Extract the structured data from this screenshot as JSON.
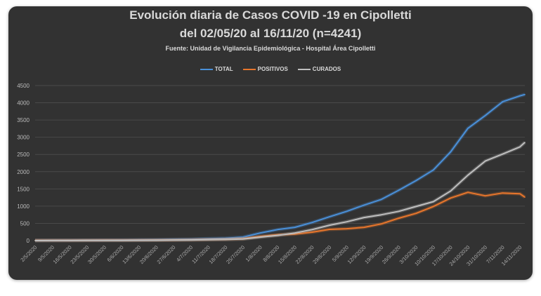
{
  "chart_data": {
    "type": "line",
    "title": "Evolución diaria de Casos COVID -19 en Cipolletti",
    "subtitle": "del 02/05/20 al 16/11/20  (n=4241)",
    "source": "Fuente: Unidad de Vigilancia Epidemiológica - Hospital Área Cipolletti",
    "xlabel": "",
    "ylabel": "",
    "ylim": [
      0,
      4500
    ],
    "yticks": [
      0,
      500,
      1000,
      1500,
      2000,
      2500,
      3000,
      3500,
      4000,
      4500
    ],
    "grid": true,
    "legend_position": "top-center",
    "x_tick_labels": [
      "2/5/2020",
      "9/5/2020",
      "16/5/2020",
      "23/5/2020",
      "30/5/2020",
      "6/6/2020",
      "13/6/2020",
      "20/6/2020",
      "27/6/2020",
      "4/7/2020",
      "11/7/2020",
      "18/7/2020",
      "25/7/2020",
      "1/8/2020",
      "8/8/2020",
      "15/8/2020",
      "22/8/2020",
      "29/8/2020",
      "5/9/2020",
      "12/9/2020",
      "19/9/2020",
      "26/9/2020",
      "3/10/2020",
      "10/10/2020",
      "17/10/2020",
      "24/10/2020",
      "31/10/2020",
      "7/11/2020",
      "14/11/2020"
    ],
    "x_days": [
      0,
      7,
      14,
      21,
      28,
      35,
      42,
      49,
      56,
      63,
      70,
      77,
      84,
      91,
      98,
      105,
      112,
      119,
      126,
      133,
      140,
      147,
      154,
      161,
      168,
      175,
      182,
      189,
      196,
      198
    ],
    "x_range_days": [
      0,
      198
    ],
    "series": [
      {
        "name": "TOTAL",
        "color": "#4a90d9",
        "values": [
          5,
          8,
          10,
          12,
          15,
          18,
          22,
          26,
          32,
          40,
          55,
          70,
          100,
          220,
          320,
          385,
          525,
          690,
          850,
          1030,
          1195,
          1460,
          1740,
          2050,
          2575,
          3260,
          3630,
          4030,
          4200,
          4241
        ]
      },
      {
        "name": "POSITIVOS",
        "color": "#e8762c",
        "values": [
          5,
          6,
          7,
          8,
          10,
          11,
          13,
          15,
          18,
          22,
          30,
          38,
          55,
          120,
          170,
          190,
          245,
          325,
          345,
          385,
          485,
          650,
          790,
          990,
          1235,
          1400,
          1300,
          1380,
          1360,
          1260
        ]
      },
      {
        "name": "CURADOS",
        "color": "#bfbfbf",
        "values": [
          0,
          2,
          3,
          4,
          5,
          7,
          9,
          11,
          14,
          18,
          25,
          32,
          45,
          100,
          150,
          220,
          320,
          445,
          545,
          670,
          750,
          850,
          990,
          1130,
          1440,
          1900,
          2310,
          2510,
          2720,
          2850
        ]
      }
    ]
  }
}
